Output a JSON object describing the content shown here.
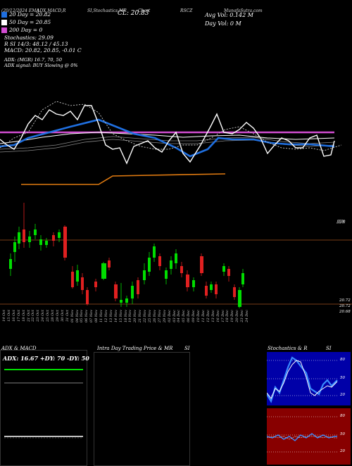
{
  "header": {
    "date_title": "(20/12/2024 EMA",
    "indicators": "ADX,MACD,R",
    "si_stoch": "SI,Stochastics,MR",
    "chart_label": "Chart",
    "symbol": "RSCZ",
    "source": "MunafaSutra.com",
    "close_label": "CL: 20.83",
    "avg_vol": "Avg Vol: 0.142  M",
    "day_vol": "Day Vol: 0   M"
  },
  "legend": [
    {
      "color": "#1f6fe0",
      "label": "20  Day = 20.82"
    },
    {
      "color": "#ffffff",
      "label": "50  Day = 20.85"
    },
    {
      "color": "#d24dd2",
      "label": "200  Day = 0"
    }
  ],
  "stats": {
    "stochastics": "Stochastics: 29.09",
    "r_line": "R               SI 14/3: 48.12 / 45.13",
    "macd": "MACD: 20.82, 20.85, -0.01 C",
    "adx": "ADX:                   (MGR) 16.7, 70, 50",
    "adx_signal": "ADX  signal:                              BUY Slowing @ 0%"
  },
  "price_axis": {
    "label_top": "回珠",
    "label_1": "20.72",
    "label_2": "20.72",
    "label_3": "20.68"
  },
  "x_labels": [
    "14 Oct",
    "15 Oct",
    "16 Oct",
    "17 Oct",
    "18 Oct",
    "21 Oct",
    "22 Oct",
    "23 Oct",
    "24 Oct",
    "25 Oct",
    "28 Oct",
    "29 Oct",
    "30 Oct",
    "31 Oct",
    "01 Nov",
    "04 Nov",
    "05 Nov",
    "06 Nov",
    "07 Nov",
    "08 Nov",
    "11 Nov",
    "12 Nov",
    "13 Nov",
    "14 Nov",
    "15 Nov",
    "18 Nov",
    "19 Nov",
    "20 Nov",
    "21 Nov",
    "22 Nov",
    "25 Nov",
    "26 Nov",
    "27 Nov",
    "29 Nov",
    "02 Dec",
    "03 Dec",
    "04 Dec",
    "05 Dec",
    "06 Dec",
    "09 Dec",
    "10 Dec",
    "11 Dec",
    "12 Dec",
    "13 Dec",
    "16 Dec",
    "17 Dec",
    "18 Dec",
    "19 Dec",
    "20 Dec",
    "23 Dec",
    "24 Dec"
  ],
  "panels": {
    "adx_title": "ADX  & MACD",
    "adx_values": "ADX: 16.67  +DY: 70  -DY: 50",
    "mr_title": "Intra  Day Trading Price  & MR",
    "mr_si": "SI",
    "stoch_title": "Stochastics & R",
    "stoch_si": "SI",
    "stoch_axis_upper": [
      "80",
      "50",
      "20"
    ],
    "stoch_axis_lower": [
      "80",
      "50",
      "20"
    ]
  },
  "colors": {
    "ema20": "#1f6fe0",
    "ema50": "#ffffff",
    "ema200": "#d24dd2",
    "orange": "#e07a10",
    "up": "#00dd00",
    "down": "#e02020",
    "stoch_bg": "#0000a8",
    "rsi_bg": "#880000"
  }
}
